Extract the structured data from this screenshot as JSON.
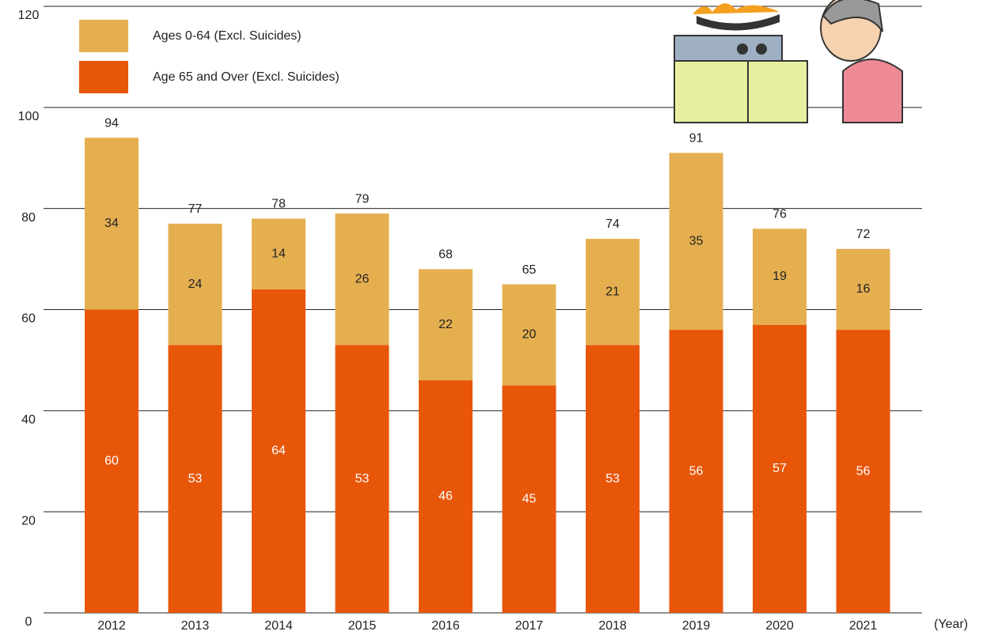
{
  "chart_data": {
    "type": "stacked_bar",
    "categories": [
      "2012",
      "2013",
      "2014",
      "2015",
      "2016",
      "2017",
      "2018",
      "2019",
      "2020",
      "2021"
    ],
    "series": [
      {
        "name": "Age 65 and Over (Excl. Suicides)",
        "color": "#e8560a",
        "label_color": "#ffffff",
        "values": [
          60,
          53,
          64,
          53,
          46,
          45,
          53,
          56,
          57,
          56
        ]
      },
      {
        "name": "Ages 0-64 (Excl. Suicides)",
        "color": "#e5af50",
        "label_color": "#222222",
        "values": [
          34,
          24,
          14,
          26,
          22,
          20,
          21,
          35,
          19,
          16
        ]
      }
    ],
    "totals": [
      94,
      77,
      78,
      79,
      68,
      65,
      74,
      91,
      76,
      72
    ],
    "x_label": "(Year)",
    "ylim": [
      0,
      120
    ],
    "yticks": [
      0,
      20,
      40,
      60,
      80,
      100,
      120
    ],
    "grid": true,
    "legend": "upper left"
  }
}
